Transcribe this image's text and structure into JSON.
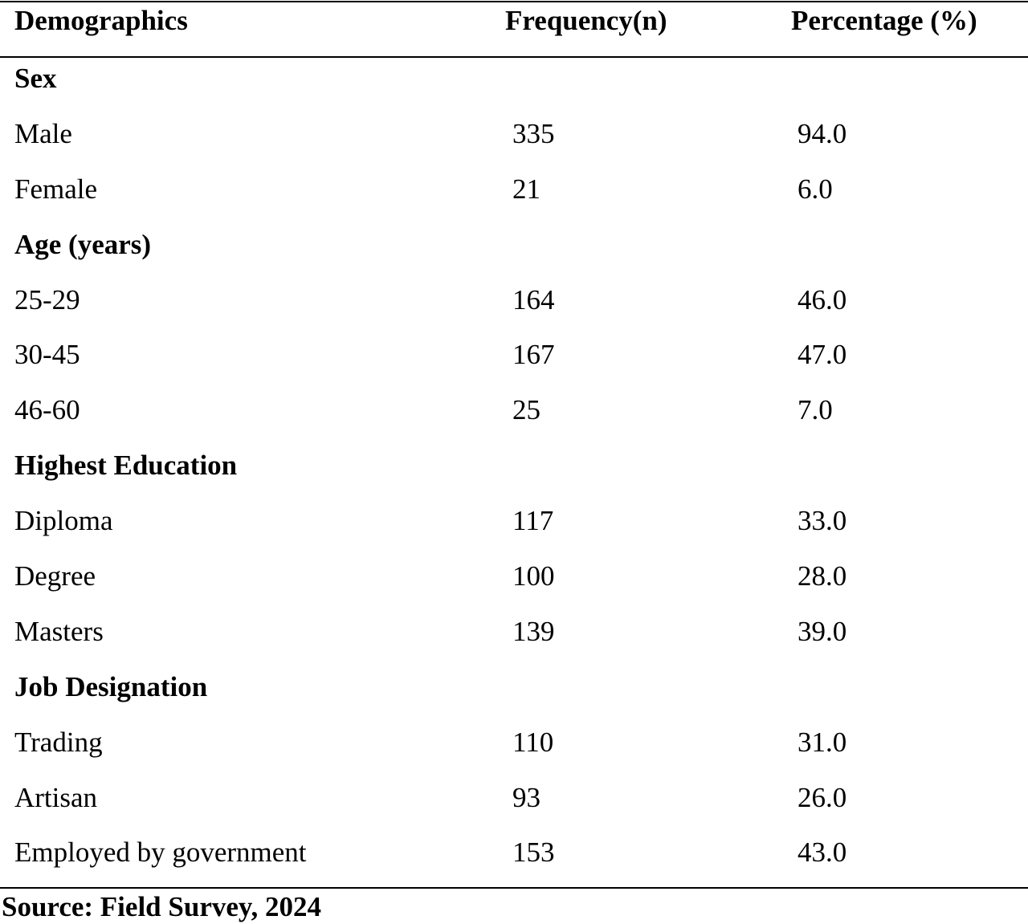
{
  "table": {
    "headers": [
      "Demographics",
      "Frequency(n)",
      "Percentage (%)"
    ],
    "rows": [
      {
        "type": "group",
        "label": "Sex",
        "n": "",
        "pct": ""
      },
      {
        "type": "item",
        "label": "Male",
        "n": "335",
        "pct": "94.0"
      },
      {
        "type": "item",
        "label": "Female",
        "n": "21",
        "pct": "6.0"
      },
      {
        "type": "group",
        "label": "Age (years)",
        "n": "",
        "pct": ""
      },
      {
        "type": "item",
        "label": "25-29",
        "n": "164",
        "pct": "46.0"
      },
      {
        "type": "item",
        "label": "30-45",
        "n": "167",
        "pct": "47.0"
      },
      {
        "type": "item",
        "label": "46-60",
        "n": "25",
        "pct": "7.0"
      },
      {
        "type": "group",
        "label": "Highest Education",
        "n": "",
        "pct": ""
      },
      {
        "type": "item",
        "label": "Diploma",
        "n": "117",
        "pct": "33.0"
      },
      {
        "type": "item",
        "label": "Degree",
        "n": "100",
        "pct": "28.0"
      },
      {
        "type": "item",
        "label": "Masters",
        "n": "139",
        "pct": "39.0"
      },
      {
        "type": "group",
        "label": "Job Designation",
        "n": "",
        "pct": ""
      },
      {
        "type": "item",
        "label": "Trading",
        "n": "110",
        "pct": "31.0"
      },
      {
        "type": "item",
        "label": "Artisan",
        "n": "93",
        "pct": "26.0"
      },
      {
        "type": "item",
        "label": "Employed by government",
        "n": "153",
        "pct": "43.0"
      }
    ],
    "source": "Source: Field Survey, 2024"
  }
}
